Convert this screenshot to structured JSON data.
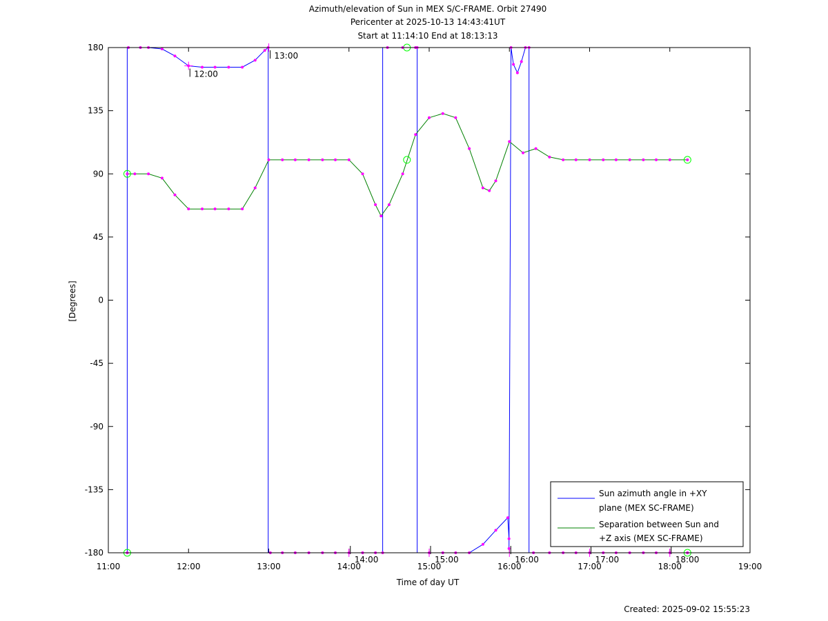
{
  "chart_data": {
    "type": "line",
    "title_lines": [
      "Azimuth/elevation of Sun in MEX S/C-FRAME.  Orbit 27490",
      "Pericenter at 2025-10-13 14:43:41UT",
      "Start at 11:14:10 End at 18:13:13"
    ],
    "xlabel": "Time of day UT",
    "ylabel": "[Degrees]",
    "xlim": [
      11,
      19
    ],
    "ylim": [
      -180,
      180
    ],
    "x_ticks": [
      11,
      12,
      13,
      14,
      15,
      16,
      17,
      18,
      19
    ],
    "x_tick_labels": [
      "11:00",
      "12:00",
      "13:00",
      "14:00",
      "15:00",
      "16:00",
      "17:00",
      "18:00",
      "19:00"
    ],
    "y_ticks": [
      180,
      135,
      90,
      45,
      0,
      -45,
      -90,
      -135,
      -180
    ],
    "y_tick_labels": [
      "180",
      "135",
      "90",
      "45",
      "0",
      "-45",
      "-90",
      "-135",
      "-180"
    ],
    "grid": false,
    "legend_position": "bottom-right",
    "series": [
      {
        "name": "Sun azimuth angle in +XY plane (MEX SC-FRAME)",
        "legend_lines": [
          "Sun azimuth angle in +XY",
          "plane (MEX SC-FRAME)"
        ],
        "color": "#0000ff",
        "x": [
          11.236,
          11.236,
          11.25,
          11.25,
          11.4,
          11.5,
          11.67,
          11.83,
          12.0,
          12.17,
          12.33,
          12.5,
          12.67,
          12.83,
          12.95,
          12.993,
          12.993,
          13.02,
          13.02,
          13.17,
          13.33,
          13.5,
          13.67,
          13.83,
          14.0,
          14.17,
          14.33,
          14.42,
          14.42,
          14.48,
          14.48,
          14.67,
          14.83,
          14.85,
          14.85,
          15.0,
          15.17,
          15.33,
          15.5,
          15.67,
          15.83,
          15.98,
          15.995,
          15.995,
          16.02,
          16.05,
          16.1,
          16.15,
          16.2,
          16.245,
          16.245,
          16.3,
          16.5,
          16.67,
          16.83,
          17.0,
          17.17,
          17.33,
          17.5,
          17.67,
          17.83,
          18.0,
          18.22
        ],
        "y": [
          -180,
          180,
          180,
          180,
          180,
          180,
          179,
          174,
          167,
          166,
          166,
          166,
          166,
          171,
          178,
          180,
          -180,
          -180,
          -180,
          -180,
          -180,
          -180,
          -180,
          -180,
          -180,
          -180,
          -180,
          -180,
          180,
          180,
          180,
          180,
          180,
          180,
          -180,
          -180,
          -180,
          -180,
          -180,
          -174,
          -164,
          -155,
          -170,
          -177,
          180,
          168,
          162,
          170,
          180,
          180,
          -180,
          -180,
          -180,
          -180,
          -180,
          -180,
          -180,
          -180,
          -180,
          -180,
          -180,
          -180,
          -180
        ]
      },
      {
        "name": "Separation between Sun and +Z axis (MEX SC-FRAME)",
        "legend_lines": [
          "Separation between Sun and",
          "+Z axis (MEX SC-FRAME)"
        ],
        "color": "#008000",
        "x": [
          11.236,
          11.33,
          11.5,
          11.67,
          11.83,
          12.0,
          12.17,
          12.33,
          12.5,
          12.67,
          12.83,
          13.0,
          13.17,
          13.33,
          13.5,
          13.67,
          13.83,
          14.0,
          14.17,
          14.33,
          14.4,
          14.5,
          14.67,
          14.83,
          15.0,
          15.17,
          15.33,
          15.5,
          15.67,
          15.75,
          15.83,
          16.0,
          16.17,
          16.33,
          16.5,
          16.67,
          16.83,
          17.0,
          17.17,
          17.33,
          17.5,
          17.67,
          17.83,
          18.0,
          18.22
        ],
        "y": [
          90,
          90,
          90,
          87,
          75,
          65,
          65,
          65,
          65,
          65,
          80,
          100,
          100,
          100,
          100,
          100,
          100,
          100,
          90,
          68,
          60,
          68,
          90,
          118,
          130,
          133,
          130,
          108,
          80,
          78,
          85,
          113,
          105,
          108,
          102,
          100,
          100,
          100,
          100,
          100,
          100,
          100,
          100,
          100,
          100
        ]
      }
    ],
    "time_markers": [
      {
        "x": 12.0,
        "y": 167,
        "label": "12:00"
      },
      {
        "x": 13.0,
        "y": 180,
        "label": "13:00"
      },
      {
        "x": 14.0,
        "y": -180,
        "label": "14:00"
      },
      {
        "x": 15.0,
        "y": -180,
        "label": "15:00"
      },
      {
        "x": 16.0,
        "y": -180,
        "label": "16:00"
      },
      {
        "x": 17.0,
        "y": -180,
        "label": "17:00"
      },
      {
        "x": 18.0,
        "y": -180,
        "label": "18:00"
      }
    ],
    "special_points": [
      {
        "x": 11.236,
        "y": 90
      },
      {
        "x": 11.236,
        "y": -180
      },
      {
        "x": 14.723,
        "y": 180
      },
      {
        "x": 14.723,
        "y": 100
      },
      {
        "x": 18.22,
        "y": 100
      },
      {
        "x": 18.22,
        "y": -180
      }
    ],
    "sample_colors": {
      "dots": "#ff00ff",
      "circles": "#00ff00"
    }
  },
  "footer": {
    "created": "Created: 2025-09-02 15:55:23"
  }
}
